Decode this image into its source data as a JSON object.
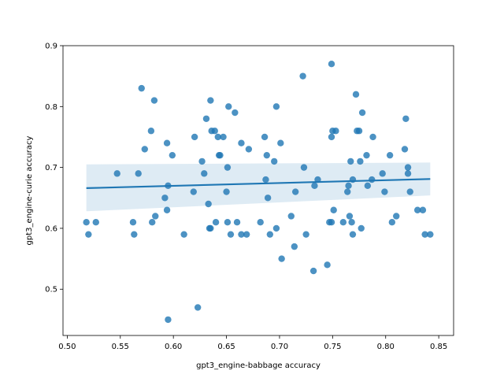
{
  "chart_data": {
    "type": "scatter",
    "title": "",
    "xlabel": "gpt3_engine-babbage accuracy",
    "ylabel": "gpt3_engine-curie accuracy",
    "xlim": [
      0.496,
      0.864
    ],
    "ylim": [
      0.424,
      0.9
    ],
    "xticks": [
      0.5,
      0.55,
      0.6,
      0.65,
      0.7,
      0.75,
      0.8,
      0.85
    ],
    "xtick_labels": [
      "0.50",
      "0.55",
      "0.60",
      "0.65",
      "0.70",
      "0.75",
      "0.80",
      "0.85"
    ],
    "yticks": [
      0.5,
      0.6,
      0.7,
      0.8,
      0.9
    ],
    "ytick_labels": [
      "0.5",
      "0.6",
      "0.7",
      "0.8",
      "0.9"
    ],
    "grid": false,
    "colors": {
      "points": "#1f77b4",
      "line": "#1f77b4",
      "band": "#1f77b4"
    },
    "regression": {
      "x": [
        0.518,
        0.842
      ],
      "y": [
        0.666,
        0.681
      ],
      "ci_upper": [
        0.705,
        0.708
      ],
      "ci_lower": [
        0.628,
        0.654
      ]
    },
    "points": [
      [
        0.518,
        0.61
      ],
      [
        0.52,
        0.59
      ],
      [
        0.527,
        0.61
      ],
      [
        0.547,
        0.69
      ],
      [
        0.562,
        0.61
      ],
      [
        0.563,
        0.59
      ],
      [
        0.567,
        0.69
      ],
      [
        0.57,
        0.83
      ],
      [
        0.573,
        0.73
      ],
      [
        0.579,
        0.76
      ],
      [
        0.58,
        0.61
      ],
      [
        0.582,
        0.81
      ],
      [
        0.583,
        0.62
      ],
      [
        0.592,
        0.65
      ],
      [
        0.594,
        0.74
      ],
      [
        0.595,
        0.67
      ],
      [
        0.594,
        0.63
      ],
      [
        0.595,
        0.45
      ],
      [
        0.599,
        0.72
      ],
      [
        0.61,
        0.59
      ],
      [
        0.619,
        0.66
      ],
      [
        0.62,
        0.75
      ],
      [
        0.623,
        0.47
      ],
      [
        0.627,
        0.71
      ],
      [
        0.629,
        0.69
      ],
      [
        0.631,
        0.78
      ],
      [
        0.633,
        0.64
      ],
      [
        0.634,
        0.6
      ],
      [
        0.635,
        0.6
      ],
      [
        0.635,
        0.81
      ],
      [
        0.636,
        0.76
      ],
      [
        0.639,
        0.76
      ],
      [
        0.64,
        0.61
      ],
      [
        0.642,
        0.75
      ],
      [
        0.643,
        0.72
      ],
      [
        0.644,
        0.72
      ],
      [
        0.647,
        0.75
      ],
      [
        0.65,
        0.66
      ],
      [
        0.651,
        0.7
      ],
      [
        0.651,
        0.61
      ],
      [
        0.652,
        0.8
      ],
      [
        0.654,
        0.59
      ],
      [
        0.658,
        0.79
      ],
      [
        0.66,
        0.61
      ],
      [
        0.664,
        0.74
      ],
      [
        0.664,
        0.59
      ],
      [
        0.669,
        0.59
      ],
      [
        0.671,
        0.73
      ],
      [
        0.682,
        0.61
      ],
      [
        0.686,
        0.75
      ],
      [
        0.687,
        0.68
      ],
      [
        0.688,
        0.72
      ],
      [
        0.689,
        0.65
      ],
      [
        0.691,
        0.59
      ],
      [
        0.695,
        0.71
      ],
      [
        0.697,
        0.8
      ],
      [
        0.697,
        0.6
      ],
      [
        0.701,
        0.74
      ],
      [
        0.702,
        0.55
      ],
      [
        0.711,
        0.62
      ],
      [
        0.714,
        0.57
      ],
      [
        0.715,
        0.66
      ],
      [
        0.722,
        0.85
      ],
      [
        0.723,
        0.7
      ],
      [
        0.725,
        0.59
      ],
      [
        0.732,
        0.53
      ],
      [
        0.733,
        0.67
      ],
      [
        0.736,
        0.68
      ],
      [
        0.745,
        0.54
      ],
      [
        0.747,
        0.61
      ],
      [
        0.749,
        0.61
      ],
      [
        0.749,
        0.75
      ],
      [
        0.749,
        0.87
      ],
      [
        0.75,
        0.76
      ],
      [
        0.751,
        0.63
      ],
      [
        0.753,
        0.76
      ],
      [
        0.76,
        0.61
      ],
      [
        0.764,
        0.66
      ],
      [
        0.765,
        0.67
      ],
      [
        0.766,
        0.62
      ],
      [
        0.767,
        0.71
      ],
      [
        0.768,
        0.61
      ],
      [
        0.769,
        0.68
      ],
      [
        0.769,
        0.59
      ],
      [
        0.772,
        0.82
      ],
      [
        0.773,
        0.76
      ],
      [
        0.775,
        0.76
      ],
      [
        0.776,
        0.71
      ],
      [
        0.777,
        0.6
      ],
      [
        0.778,
        0.79
      ],
      [
        0.782,
        0.72
      ],
      [
        0.783,
        0.67
      ],
      [
        0.787,
        0.68
      ],
      [
        0.788,
        0.75
      ],
      [
        0.797,
        0.69
      ],
      [
        0.799,
        0.66
      ],
      [
        0.804,
        0.72
      ],
      [
        0.806,
        0.61
      ],
      [
        0.81,
        0.62
      ],
      [
        0.818,
        0.73
      ],
      [
        0.819,
        0.78
      ],
      [
        0.821,
        0.7
      ],
      [
        0.821,
        0.69
      ],
      [
        0.823,
        0.66
      ],
      [
        0.83,
        0.63
      ],
      [
        0.835,
        0.63
      ],
      [
        0.837,
        0.59
      ],
      [
        0.842,
        0.59
      ]
    ]
  }
}
